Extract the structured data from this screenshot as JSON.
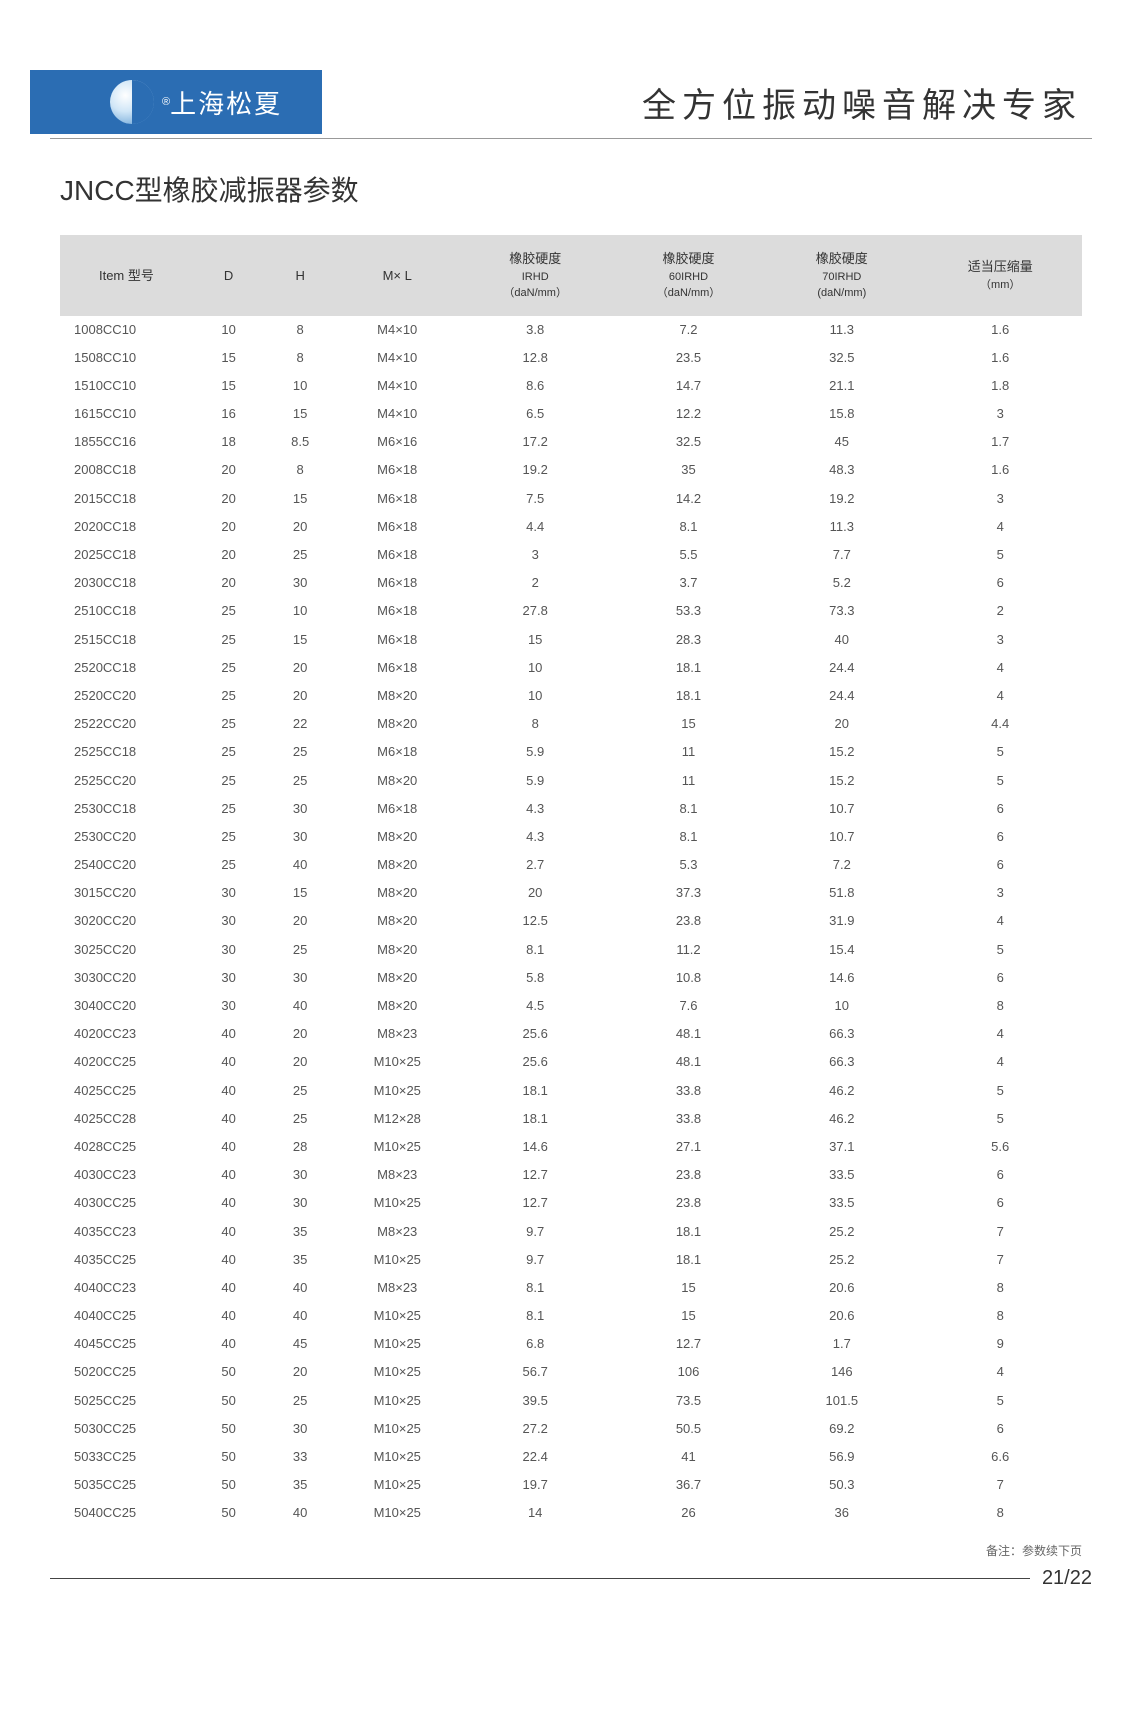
{
  "header": {
    "brand": "上海松夏",
    "reg": "®",
    "slogan": "全方位振动噪音解决专家"
  },
  "title": "JNCC型橡胶减振器参数",
  "table": {
    "columns": [
      {
        "l1": "Item 型号",
        "l2": ""
      },
      {
        "l1": "D",
        "l2": ""
      },
      {
        "l1": "H",
        "l2": ""
      },
      {
        "l1": "M× L",
        "l2": ""
      },
      {
        "l1": "橡胶硬度",
        "l2": "IRHD",
        "l3": "（daN/mm）"
      },
      {
        "l1": "橡胶硬度",
        "l2": "60IRHD",
        "l3": "（daN/mm）"
      },
      {
        "l1": "橡胶硬度",
        "l2": "70IRHD",
        "l3": "(daN/mm)"
      },
      {
        "l1": "适当压缩量",
        "l2": "（mm）"
      }
    ],
    "rows": [
      [
        "1008CC10",
        "10",
        "8",
        "M4×10",
        "3.8",
        "7.2",
        "11.3",
        "1.6"
      ],
      [
        "1508CC10",
        "15",
        "8",
        "M4×10",
        "12.8",
        "23.5",
        "32.5",
        "1.6"
      ],
      [
        "1510CC10",
        "15",
        "10",
        "M4×10",
        "8.6",
        "14.7",
        "21.1",
        "1.8"
      ],
      [
        "1615CC10",
        "16",
        "15",
        "M4×10",
        "6.5",
        "12.2",
        "15.8",
        "3"
      ],
      [
        "1855CC16",
        "18",
        "8.5",
        "M6×16",
        "17.2",
        "32.5",
        "45",
        "1.7"
      ],
      [
        "2008CC18",
        "20",
        "8",
        "M6×18",
        "19.2",
        "35",
        "48.3",
        "1.6"
      ],
      [
        "2015CC18",
        "20",
        "15",
        "M6×18",
        "7.5",
        "14.2",
        "19.2",
        "3"
      ],
      [
        "2020CC18",
        "20",
        "20",
        "M6×18",
        "4.4",
        "8.1",
        "11.3",
        "4"
      ],
      [
        "2025CC18",
        "20",
        "25",
        "M6×18",
        "3",
        "5.5",
        "7.7",
        "5"
      ],
      [
        "2030CC18",
        "20",
        "30",
        "M6×18",
        "2",
        "3.7",
        "5.2",
        "6"
      ],
      [
        "2510CC18",
        "25",
        "10",
        "M6×18",
        "27.8",
        "53.3",
        "73.3",
        "2"
      ],
      [
        "2515CC18",
        "25",
        "15",
        "M6×18",
        "15",
        "28.3",
        "40",
        "3"
      ],
      [
        "2520CC18",
        "25",
        "20",
        "M6×18",
        "10",
        "18.1",
        "24.4",
        "4"
      ],
      [
        "2520CC20",
        "25",
        "20",
        "M8×20",
        "10",
        "18.1",
        "24.4",
        "4"
      ],
      [
        "2522CC20",
        "25",
        "22",
        "M8×20",
        "8",
        "15",
        "20",
        "4.4"
      ],
      [
        "2525CC18",
        "25",
        "25",
        "M6×18",
        "5.9",
        "11",
        "15.2",
        "5"
      ],
      [
        "2525CC20",
        "25",
        "25",
        "M8×20",
        "5.9",
        "11",
        "15.2",
        "5"
      ],
      [
        "2530CC18",
        "25",
        "30",
        "M6×18",
        "4.3",
        "8.1",
        "10.7",
        "6"
      ],
      [
        "2530CC20",
        "25",
        "30",
        "M8×20",
        "4.3",
        "8.1",
        "10.7",
        "6"
      ],
      [
        "2540CC20",
        "25",
        "40",
        "M8×20",
        "2.7",
        "5.3",
        "7.2",
        "6"
      ],
      [
        "3015CC20",
        "30",
        "15",
        "M8×20",
        "20",
        "37.3",
        "51.8",
        "3"
      ],
      [
        "3020CC20",
        "30",
        "20",
        "M8×20",
        "12.5",
        "23.8",
        "31.9",
        "4"
      ],
      [
        "3025CC20",
        "30",
        "25",
        "M8×20",
        "8.1",
        "11.2",
        "15.4",
        "5"
      ],
      [
        "3030CC20",
        "30",
        "30",
        "M8×20",
        "5.8",
        "10.8",
        "14.6",
        "6"
      ],
      [
        "3040CC20",
        "30",
        "40",
        "M8×20",
        "4.5",
        "7.6",
        "10",
        "8"
      ],
      [
        "4020CC23",
        "40",
        "20",
        "M8×23",
        "25.6",
        "48.1",
        "66.3",
        "4"
      ],
      [
        "4020CC25",
        "40",
        "20",
        "M10×25",
        "25.6",
        "48.1",
        "66.3",
        "4"
      ],
      [
        "4025CC25",
        "40",
        "25",
        "M10×25",
        "18.1",
        "33.8",
        "46.2",
        "5"
      ],
      [
        "4025CC28",
        "40",
        "25",
        "M12×28",
        "18.1",
        "33.8",
        "46.2",
        "5"
      ],
      [
        "4028CC25",
        "40",
        "28",
        "M10×25",
        "14.6",
        "27.1",
        "37.1",
        "5.6"
      ],
      [
        "4030CC23",
        "40",
        "30",
        "M8×23",
        "12.7",
        "23.8",
        "33.5",
        "6"
      ],
      [
        "4030CC25",
        "40",
        "30",
        "M10×25",
        "12.7",
        "23.8",
        "33.5",
        "6"
      ],
      [
        "4035CC23",
        "40",
        "35",
        "M8×23",
        "9.7",
        "18.1",
        "25.2",
        "7"
      ],
      [
        "4035CC25",
        "40",
        "35",
        "M10×25",
        "9.7",
        "18.1",
        "25.2",
        "7"
      ],
      [
        "4040CC23",
        "40",
        "40",
        "M8×23",
        "8.1",
        "15",
        "20.6",
        "8"
      ],
      [
        "4040CC25",
        "40",
        "40",
        "M10×25",
        "8.1",
        "15",
        "20.6",
        "8"
      ],
      [
        "4045CC25",
        "40",
        "45",
        "M10×25",
        "6.8",
        "12.7",
        "1.7",
        "9"
      ],
      [
        "5020CC25",
        "50",
        "20",
        "M10×25",
        "56.7",
        "106",
        "146",
        "4"
      ],
      [
        "5025CC25",
        "50",
        "25",
        "M10×25",
        "39.5",
        "73.5",
        "101.5",
        "5"
      ],
      [
        "5030CC25",
        "50",
        "30",
        "M10×25",
        "27.2",
        "50.5",
        "69.2",
        "6"
      ],
      [
        "5033CC25",
        "50",
        "33",
        "M10×25",
        "22.4",
        "41",
        "56.9",
        "6.6"
      ],
      [
        "5035CC25",
        "50",
        "35",
        "M10×25",
        "19.7",
        "36.7",
        "50.3",
        "7"
      ],
      [
        "5040CC25",
        "50",
        "40",
        "M10×25",
        "14",
        "26",
        "36",
        "8"
      ]
    ],
    "col_widths": [
      "13%",
      "7%",
      "7%",
      "12%",
      "15%",
      "15%",
      "15%",
      "16%"
    ]
  },
  "footnote": "备注：参数续下页",
  "page_number": "21/22"
}
